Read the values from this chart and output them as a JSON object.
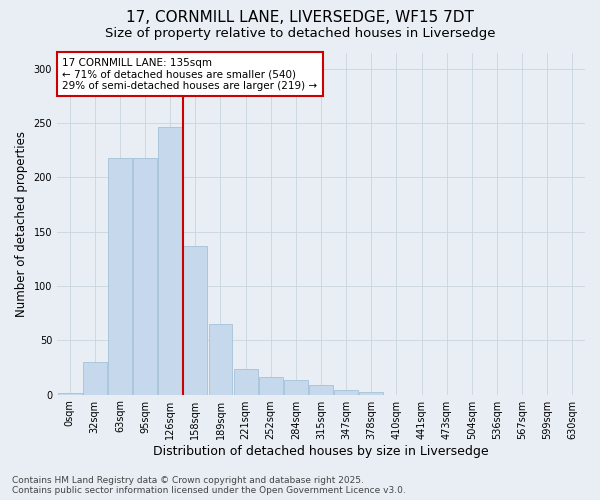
{
  "title_line1": "17, CORNMILL LANE, LIVERSEDGE, WF15 7DT",
  "title_line2": "Size of property relative to detached houses in Liversedge",
  "xlabel": "Distribution of detached houses by size in Liversedge",
  "ylabel": "Number of detached properties",
  "bar_color": "#c6d9ec",
  "bar_edgecolor": "#9bbcd4",
  "categories": [
    "0sqm",
    "32sqm",
    "63sqm",
    "95sqm",
    "126sqm",
    "158sqm",
    "189sqm",
    "221sqm",
    "252sqm",
    "284sqm",
    "315sqm",
    "347sqm",
    "378sqm",
    "410sqm",
    "441sqm",
    "473sqm",
    "504sqm",
    "536sqm",
    "567sqm",
    "599sqm",
    "630sqm"
  ],
  "values": [
    1,
    30,
    218,
    218,
    246,
    137,
    65,
    24,
    16,
    13,
    9,
    4,
    2,
    0,
    0,
    0,
    0,
    0,
    0,
    0,
    0
  ],
  "ylim": [
    0,
    315
  ],
  "yticks": [
    0,
    50,
    100,
    150,
    200,
    250,
    300
  ],
  "property_line_x": 4.5,
  "annotation_title": "17 CORNMILL LANE: 135sqm",
  "annotation_line1": "← 71% of detached houses are smaller (540)",
  "annotation_line2": "29% of semi-detached houses are larger (219) →",
  "annotation_box_color": "#ffffff",
  "annotation_box_edgecolor": "#cc0000",
  "vline_color": "#cc0000",
  "grid_color": "#c8d4de",
  "background_color": "#e8eef4",
  "footer_line1": "Contains HM Land Registry data © Crown copyright and database right 2025.",
  "footer_line2": "Contains public sector information licensed under the Open Government Licence v3.0.",
  "title_fontsize": 11,
  "subtitle_fontsize": 9.5,
  "axis_label_fontsize": 8.5,
  "tick_fontsize": 7,
  "annotation_fontsize": 7.5,
  "footer_fontsize": 6.5
}
